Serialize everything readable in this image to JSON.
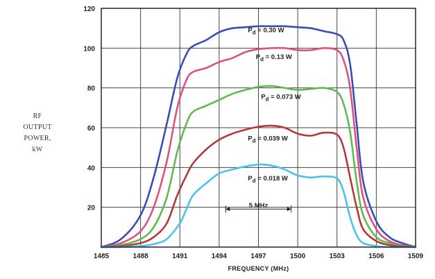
{
  "chart_data": {
    "type": "line",
    "ylabel_lines": [
      "RF",
      "OUTPUT",
      "POWER,",
      "kW"
    ],
    "xlabel": "FREQUENCY (MHz)",
    "xlim": [
      1485,
      1509
    ],
    "ylim": [
      0,
      120
    ],
    "xticks": [
      1485,
      1488,
      1491,
      1494,
      1497,
      1500,
      1503,
      1506,
      1509
    ],
    "yticks": [
      0,
      20,
      40,
      60,
      80,
      100,
      120
    ],
    "ytick_labels": [
      "",
      "20",
      "40",
      "60",
      "80",
      "100",
      "120"
    ],
    "grid": true,
    "series": [
      {
        "name": "Pd = 0.30 W",
        "sub": "d",
        "value": "0.30 W",
        "color": "#3a4cb5",
        "label_pos": [
          1496.2,
          108
        ],
        "x": [
          1485,
          1486.5,
          1488,
          1489,
          1490,
          1490.8,
          1491.5,
          1492,
          1493,
          1494,
          1495,
          1496,
          1497,
          1498,
          1499,
          1500,
          1501,
          1502,
          1503,
          1503.5,
          1504,
          1504.5,
          1505,
          1506,
          1507,
          1508,
          1509
        ],
        "y": [
          0,
          4,
          16,
          35,
          62,
          85,
          97,
          101,
          104,
          108,
          110,
          110.5,
          111,
          111,
          111,
          110.5,
          110,
          108.5,
          107,
          104,
          92,
          62,
          33,
          13,
          5,
          2,
          0
        ]
      },
      {
        "name": "Pd = 0.13 W",
        "sub": "d",
        "value": "0.13 W",
        "color": "#e0507c",
        "label_pos": [
          1496.8,
          94.5
        ],
        "x": [
          1485,
          1486.5,
          1488,
          1489,
          1490,
          1490.8,
          1491.5,
          1492,
          1493,
          1494,
          1495,
          1496,
          1497,
          1498,
          1499,
          1500,
          1501,
          1502,
          1503,
          1503.5,
          1504,
          1504.5,
          1505,
          1506,
          1507,
          1508,
          1509
        ],
        "y": [
          0,
          2,
          8,
          20,
          43,
          70,
          84,
          88,
          90,
          93,
          95,
          98,
          99.5,
          100,
          100,
          99,
          99,
          100,
          99,
          94,
          80,
          50,
          25,
          9,
          3,
          1,
          0
        ]
      },
      {
        "name": "Pd = 0.073 W",
        "sub": "d",
        "value": "0.073 W",
        "color": "#5fba52",
        "label_pos": [
          1497.2,
          74.5
        ],
        "x": [
          1485,
          1486.5,
          1488,
          1489,
          1490,
          1490.8,
          1491.5,
          1492,
          1493,
          1494,
          1495,
          1496,
          1497,
          1498,
          1499,
          1500,
          1501,
          1502,
          1503,
          1503.5,
          1504,
          1504.5,
          1505,
          1506,
          1507,
          1508,
          1509
        ],
        "y": [
          0,
          1,
          4,
          10,
          25,
          48,
          62,
          68,
          71,
          74,
          77,
          79,
          80.5,
          81,
          80,
          79,
          79.5,
          80,
          78,
          72,
          58,
          33,
          16,
          5,
          2,
          0.5,
          0
        ]
      },
      {
        "name": "Pd = 0.039 W",
        "sub": "d",
        "value": "0.039 W",
        "color": "#b5383a",
        "label_pos": [
          1496.2,
          53.5
        ],
        "x": [
          1485,
          1486.5,
          1488,
          1489,
          1490,
          1490.8,
          1491.5,
          1492,
          1493,
          1494,
          1495,
          1496,
          1497,
          1498,
          1499,
          1500,
          1501,
          1502,
          1503,
          1503.5,
          1504,
          1504.5,
          1505,
          1506,
          1507,
          1508,
          1509
        ],
        "y": [
          0,
          0.5,
          2,
          5,
          12,
          26,
          36,
          42,
          49,
          54,
          57,
          59,
          60.5,
          61,
          60,
          57,
          56,
          57.5,
          56.5,
          50,
          35,
          20,
          9,
          3,
          1,
          0.3,
          0
        ]
      },
      {
        "name": "Pd = 0.018 W",
        "sub": "d",
        "value": "0.018 W",
        "color": "#47c4e8",
        "label_pos": [
          1496.2,
          33.5
        ],
        "x": [
          1485,
          1486.5,
          1488,
          1489,
          1490,
          1491,
          1491.5,
          1492,
          1493,
          1494,
          1495,
          1496,
          1497,
          1498,
          1499,
          1500,
          1501,
          1502,
          1503,
          1503.5,
          1504,
          1504.5,
          1505,
          1506,
          1507,
          1508,
          1509
        ],
        "y": [
          0,
          0,
          0.5,
          1.5,
          4,
          12,
          19,
          26,
          32,
          37,
          39,
          40.5,
          41.5,
          41,
          39,
          36,
          35,
          35.5,
          34.5,
          28,
          15,
          6,
          2,
          0.5,
          0,
          0,
          0
        ]
      }
    ],
    "bandwidth_annotation": {
      "text": "5 MHz",
      "x_from": 1494.5,
      "x_to": 1499.5,
      "y": 20.5
    }
  }
}
